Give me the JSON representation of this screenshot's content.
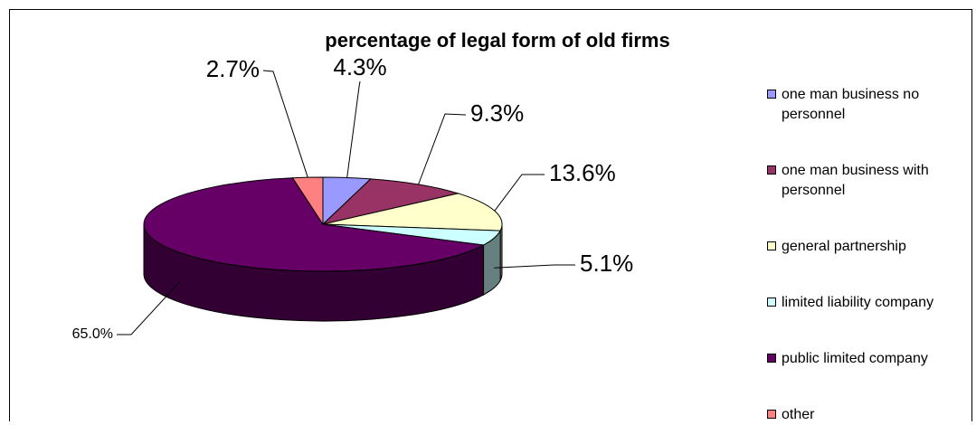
{
  "chart_data": {
    "type": "pie",
    "title": "percentage of legal form of old firms",
    "categories": [
      "one man business no personnel",
      "one man business with personnel",
      "general partnership",
      "limited liability company",
      "public limited company",
      "other"
    ],
    "values": [
      4.3,
      9.3,
      13.6,
      5.1,
      65.0,
      2.7
    ],
    "value_labels": [
      "4.3%",
      "9.3%",
      "13.6%",
      "5.1%",
      "65.0%",
      "2.7%"
    ],
    "colors": [
      "#9999ff",
      "#993366",
      "#ffffcc",
      "#ccffff",
      "#660066",
      "#ff8080"
    ],
    "legend": "right"
  }
}
